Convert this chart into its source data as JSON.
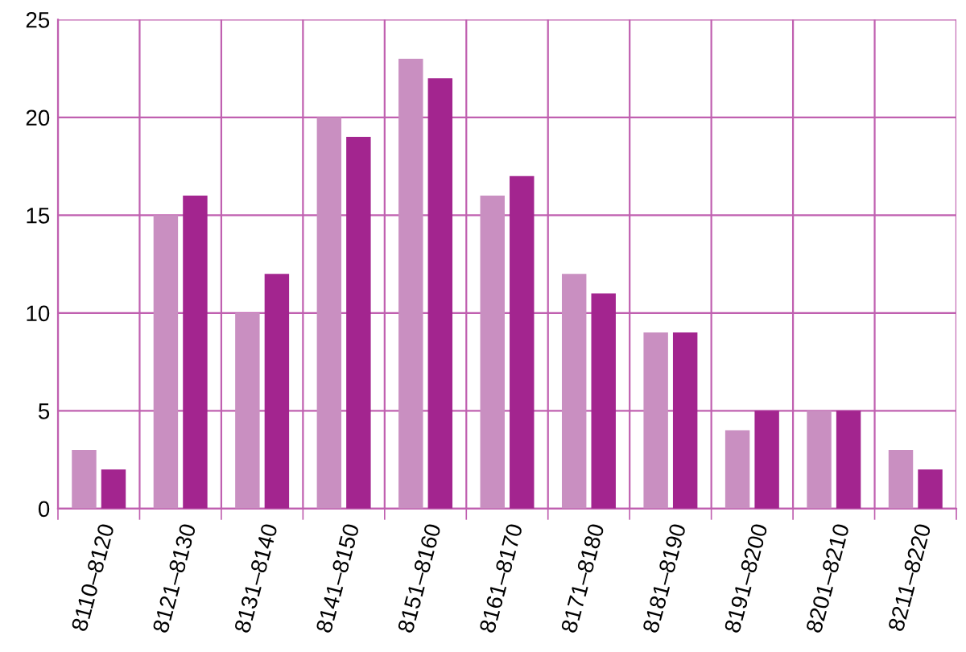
{
  "chart_data": {
    "type": "bar",
    "categories": [
      "8110–8120",
      "8121–8130",
      "8131–8140",
      "8141–8150",
      "8151–8160",
      "8161–8170",
      "8171–8180",
      "8181–8190",
      "8191–8200",
      "8201–8210",
      "8211–8220"
    ],
    "series": [
      {
        "color": "#c98fc1",
        "values": [
          3,
          15,
          10,
          20,
          23,
          16,
          12,
          9,
          4,
          5,
          3
        ]
      },
      {
        "color": "#a3258f",
        "values": [
          2,
          16,
          12,
          19,
          22,
          17,
          11,
          9,
          5,
          5,
          2
        ]
      }
    ],
    "ylim": [
      0,
      25
    ],
    "yticks": [
      0,
      5,
      10,
      15,
      20,
      25
    ],
    "grid": true
  }
}
